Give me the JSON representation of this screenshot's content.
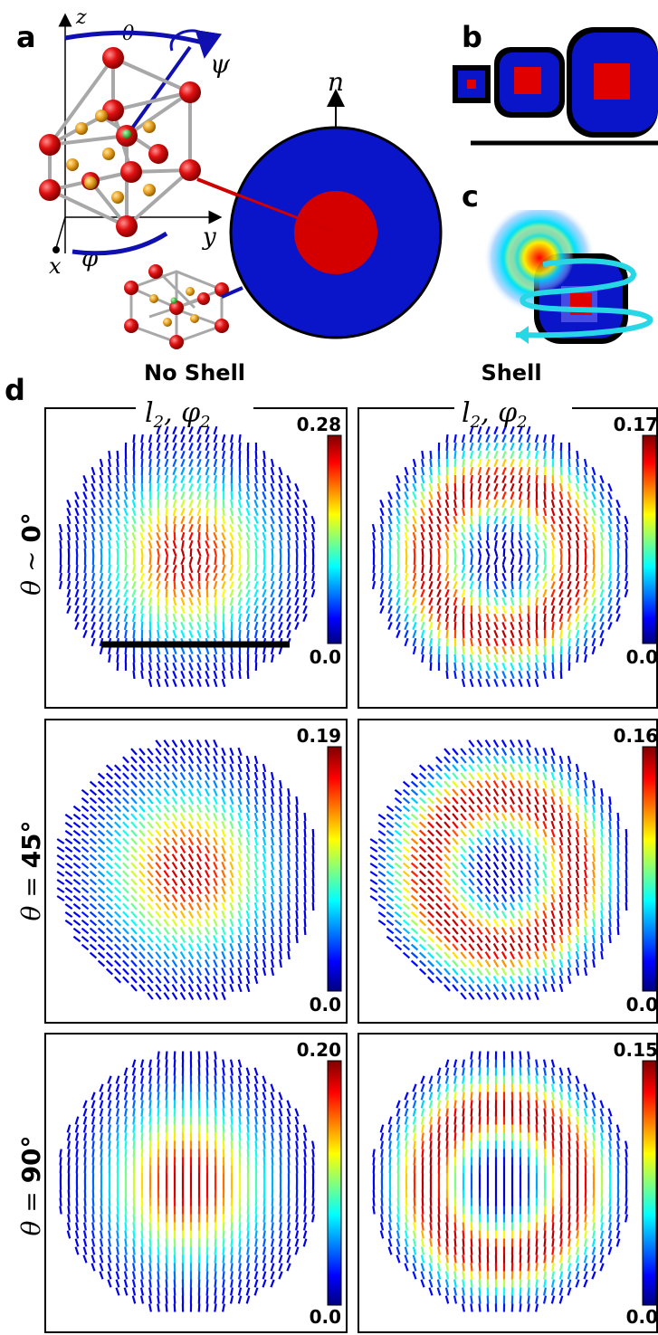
{
  "panel_labels": {
    "a": "a",
    "b": "b",
    "c": "c",
    "d": "d"
  },
  "panel_a": {
    "axis_z": "z",
    "axis_y": "y",
    "axis_x": "x",
    "angle_theta": "θ",
    "angle_psi": "ψ",
    "angle_phi": "φ",
    "normal_label": "n"
  },
  "panel_d": {
    "col_titles": [
      "No Shell",
      "Shell"
    ],
    "col_subtitles": [
      "l",
      "l"
    ],
    "subtitle_sub": "2",
    "subtitle_rest": ", φ",
    "row_labels": [
      {
        "symbol": "θ",
        "relation": "∼",
        "value": "0°"
      },
      {
        "symbol": "θ",
        "relation": "=",
        "value": "45°"
      },
      {
        "symbol": "θ",
        "relation": "=",
        "value": "90°"
      }
    ],
    "colorbar_min": "0.0",
    "colorbar_max": [
      [
        "0.28",
        "0.17"
      ],
      [
        "0.19",
        "0.16"
      ],
      [
        "0.20",
        "0.15"
      ]
    ],
    "colormap": [
      "#00007f",
      "#0000ff",
      "#00ffff",
      "#ffff00",
      "#ff0000",
      "#7f0000"
    ]
  },
  "colors": {
    "outer_disk": "#0a14c8",
    "inner_disk": "#d40000",
    "atom_large": "#e01010",
    "atom_small": "#e8a020",
    "atom_center": "#20c020",
    "swirl": "#28d7e6",
    "axis_blue": "#1010b0"
  }
}
